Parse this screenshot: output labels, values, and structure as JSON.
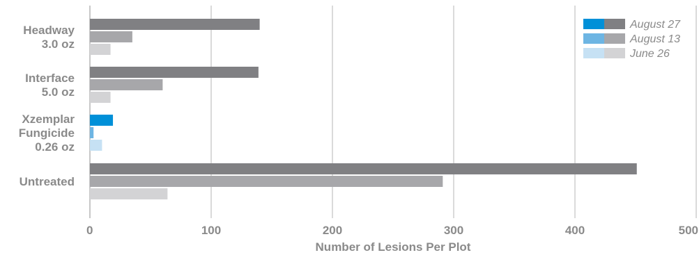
{
  "chart_data": {
    "type": "bar",
    "orientation": "horizontal",
    "categories": [
      [
        "Headway",
        "3.0 oz"
      ],
      [
        "Interface",
        "5.0 oz"
      ],
      [
        "Xzemplar",
        "Fungicide",
        "0.26 oz"
      ],
      [
        "Untreated"
      ]
    ],
    "series": [
      {
        "name": "August 27",
        "values": [
          140,
          139,
          19,
          451
        ]
      },
      {
        "name": "August 13",
        "values": [
          35,
          60,
          3,
          291
        ]
      },
      {
        "name": "June 26",
        "values": [
          17,
          17,
          10,
          64
        ]
      }
    ],
    "xlabel": "Number of Lesions Per Plot",
    "xlim": [
      0,
      500
    ],
    "xticks": [
      0,
      100,
      200,
      300,
      400,
      500
    ],
    "grid": "vertical",
    "legend_position": "top-right",
    "colors": {
      "series_gray": [
        "#808083",
        "#a7a7aa",
        "#d3d3d5"
      ],
      "highlight": [
        "#0090d8",
        "#6db5e3",
        "#c6e1f4"
      ],
      "highlight_category": 2,
      "grid": "#b5b5b5",
      "text": "#8a8a8a"
    }
  }
}
